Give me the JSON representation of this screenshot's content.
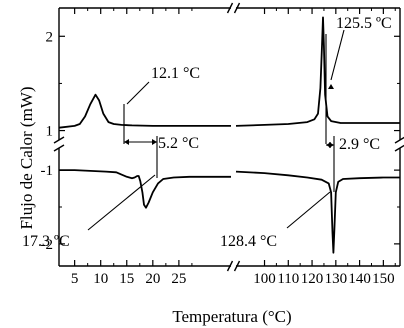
{
  "chart_data": {
    "type": "line",
    "xlabel": "Temperatura (°C)",
    "ylabel": "Flujo de Calor (mW)",
    "axis_break": "broken x-axis and broken y-axis",
    "y_ticks": [
      "2",
      "1",
      "-1",
      "-2"
    ],
    "panels": [
      {
        "name": "low-temperature",
        "x_range": [
          2,
          35
        ],
        "x_ticks": [
          "5",
          "10",
          "15",
          "20",
          "25"
        ],
        "series": [
          {
            "y_range": [
              0.9,
              2.3
            ],
            "points": [
              [
                2,
                1.03
              ],
              [
                5,
                1.05
              ],
              [
                6,
                1.07
              ],
              [
                7,
                1.15
              ],
              [
                8,
                1.28
              ],
              [
                9,
                1.38
              ],
              [
                9.7,
                1.32
              ],
              [
                10.5,
                1.18
              ],
              [
                11.5,
                1.09
              ],
              [
                12.5,
                1.07
              ],
              [
                14,
                1.06
              ],
              [
                16,
                1.055
              ],
              [
                20,
                1.05
              ],
              [
                25,
                1.05
              ],
              [
                30,
                1.05
              ],
              [
                35,
                1.05
              ]
            ]
          },
          {
            "y_range": [
              -2.3,
              -0.7
            ],
            "points": [
              [
                2,
                -1.0
              ],
              [
                5,
                -1.0
              ],
              [
                8,
                -1.01
              ],
              [
                11,
                -1.02
              ],
              [
                13,
                -1.03
              ],
              [
                14,
                -1.06
              ],
              [
                15,
                -1.09
              ],
              [
                16,
                -1.11
              ],
              [
                16.5,
                -1.1
              ],
              [
                17,
                -1.08
              ],
              [
                17.3,
                -1.08
              ],
              [
                17.6,
                -1.15
              ],
              [
                18,
                -1.3
              ],
              [
                18.3,
                -1.47
              ],
              [
                18.7,
                -1.51
              ],
              [
                19.2,
                -1.44
              ],
              [
                20,
                -1.3
              ],
              [
                21,
                -1.18
              ],
              [
                22,
                -1.12
              ],
              [
                24,
                -1.1
              ],
              [
                27,
                -1.09
              ],
              [
                30,
                -1.09
              ],
              [
                35,
                -1.09
              ]
            ]
          }
        ]
      },
      {
        "name": "high-temperature",
        "x_range": [
          88,
          157
        ],
        "x_ticks": [
          "100",
          "110",
          "120",
          "130",
          "140",
          "150"
        ],
        "series": [
          {
            "y_range": [
              0.9,
              2.3
            ],
            "points": [
              [
                88,
                1.05
              ],
              [
                100,
                1.06
              ],
              [
                110,
                1.07
              ],
              [
                118,
                1.09
              ],
              [
                121,
                1.12
              ],
              [
                122.5,
                1.18
              ],
              [
                123.5,
                1.45
              ],
              [
                124.2,
                1.9
              ],
              [
                124.6,
                2.2
              ],
              [
                125,
                1.9
              ],
              [
                125.5,
                1.38
              ],
              [
                126.5,
                1.15
              ],
              [
                128,
                1.1
              ],
              [
                132,
                1.08
              ],
              [
                140,
                1.08
              ],
              [
                150,
                1.08
              ],
              [
                157,
                1.08
              ]
            ]
          },
          {
            "y_range": [
              -2.3,
              -0.7
            ],
            "points": [
              [
                88,
                -1.02
              ],
              [
                100,
                -1.04
              ],
              [
                110,
                -1.07
              ],
              [
                118,
                -1.1
              ],
              [
                124,
                -1.13
              ],
              [
                127,
                -1.18
              ],
              [
                128,
                -1.3
              ],
              [
                128.6,
                -1.85
              ],
              [
                129,
                -2.12
              ],
              [
                129.4,
                -1.8
              ],
              [
                130,
                -1.3
              ],
              [
                131,
                -1.16
              ],
              [
                133,
                -1.12
              ],
              [
                140,
                -1.11
              ],
              [
                150,
                -1.1
              ],
              [
                157,
                -1.1
              ]
            ]
          }
        ]
      }
    ],
    "annotations": [
      {
        "text": "12.1 °C"
      },
      {
        "text": "5.2 °C"
      },
      {
        "text": "17.3 ºC"
      },
      {
        "text": "125.5 ºC"
      },
      {
        "text": "2.9 °C"
      },
      {
        "text": "128.4 °C"
      }
    ]
  }
}
